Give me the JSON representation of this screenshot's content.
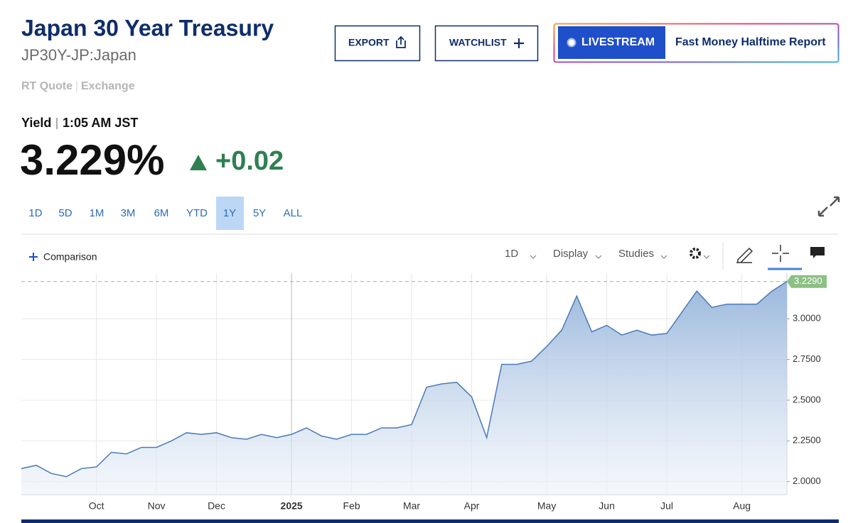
{
  "header": {
    "title": "Japan 30 Year Treasury",
    "symbol": "JP30Y-JP:Japan",
    "quote_source": "RT Quote",
    "exchange": "Exchange"
  },
  "buttons": {
    "export": "EXPORT",
    "watchlist": "WATCHLIST",
    "livestream": "LIVESTREAM",
    "show": "Fast Money Halftime Report"
  },
  "quote": {
    "label": "Yield",
    "time": "1:05 AM JST",
    "last": "3.229%",
    "change": "+0.02"
  },
  "ranges": [
    "1D",
    "5D",
    "1M",
    "3M",
    "6M",
    "YTD",
    "1Y",
    "5Y",
    "ALL"
  ],
  "active_range": 6,
  "toolbar": {
    "comparison": "Comparison",
    "interval": "1D",
    "display": "Display",
    "studies": "Studies"
  },
  "chart_data": {
    "type": "area",
    "color": "#4a7ab8",
    "categories": [
      null,
      null,
      null,
      null,
      null,
      "Oct",
      null,
      null,
      null,
      "Nov",
      null,
      null,
      null,
      "Dec",
      null,
      null,
      null,
      null,
      "2025",
      null,
      null,
      null,
      "Feb",
      null,
      null,
      null,
      "Mar",
      null,
      null,
      null,
      "Apr",
      null,
      null,
      null,
      null,
      "May",
      null,
      null,
      null,
      "Jun",
      null,
      null,
      null,
      "Jul",
      null,
      null,
      null,
      null,
      "Aug",
      null,
      null,
      null
    ],
    "values": [
      2.08,
      2.1,
      2.05,
      2.03,
      2.08,
      2.09,
      2.18,
      2.17,
      2.21,
      2.21,
      2.25,
      2.3,
      2.29,
      2.3,
      2.27,
      2.26,
      2.29,
      2.27,
      2.29,
      2.33,
      2.28,
      2.26,
      2.29,
      2.29,
      2.33,
      2.33,
      2.35,
      2.58,
      2.6,
      2.61,
      2.52,
      2.27,
      2.72,
      2.72,
      2.74,
      2.83,
      2.93,
      3.14,
      2.92,
      2.96,
      2.9,
      2.93,
      2.9,
      2.91,
      3.04,
      3.17,
      3.07,
      3.09,
      3.09,
      3.09,
      3.17,
      3.229
    ],
    "ylim": [
      1.92,
      3.28
    ],
    "yticks": [
      {
        "value": 2,
        "label": "2.0000"
      },
      {
        "value": 2.25,
        "label": "2.2500"
      },
      {
        "value": 2.5,
        "label": "2.5000"
      },
      {
        "value": 2.75,
        "label": "2.7500"
      },
      {
        "value": 3,
        "label": "3.0000"
      }
    ],
    "last_marker": {
      "value": 3.229,
      "label": "3.2290"
    },
    "grid": true
  }
}
